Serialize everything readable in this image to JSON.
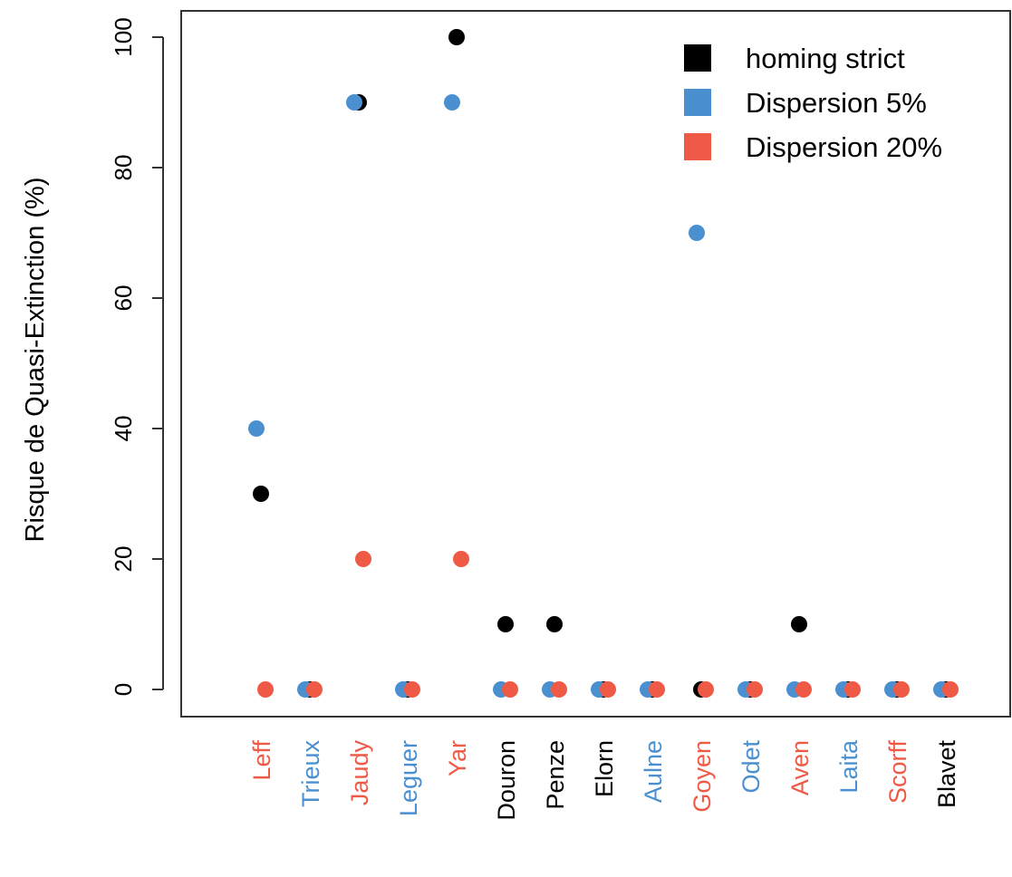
{
  "chart_data": {
    "type": "scatter",
    "title": "",
    "xlabel": "",
    "ylabel": "Risque de Quasi-Extinction (%)",
    "ylim": [
      -5,
      104
    ],
    "yticks": [
      0,
      20,
      40,
      60,
      80,
      100
    ],
    "grid": false,
    "legend_position": "top-right",
    "categories": [
      "Leff",
      "Trieux",
      "Jaudy",
      "Leguer",
      "Yar",
      "Douron",
      "Penze",
      "Elorn",
      "Aulne",
      "Goyen",
      "Odet",
      "Aven",
      "Laita",
      "Scorff",
      "Blavet"
    ],
    "category_colors": [
      "#ee5a45",
      "#4a90d0",
      "#ee5a45",
      "#4a90d0",
      "#ee5a45",
      "#000000",
      "#000000",
      "#000000",
      "#4a90d0",
      "#ee5a45",
      "#4a90d0",
      "#ee5a45",
      "#4a90d0",
      "#ee5a45",
      "#000000"
    ],
    "series": [
      {
        "name": "homing strict",
        "color": "#000000",
        "values": [
          30,
          0,
          90,
          0,
          100,
          10,
          10,
          0,
          0,
          0,
          0,
          10,
          0,
          0,
          0
        ]
      },
      {
        "name": "Dispersion 5%",
        "color": "#4a90d0",
        "values": [
          40,
          0,
          90,
          0,
          90,
          0,
          0,
          0,
          0,
          70,
          0,
          0,
          0,
          0,
          0
        ]
      },
      {
        "name": "Dispersion 20%",
        "color": "#ee5a45",
        "values": [
          0,
          0,
          20,
          0,
          20,
          0,
          0,
          0,
          0,
          0,
          0,
          0,
          0,
          0,
          0
        ]
      }
    ]
  }
}
